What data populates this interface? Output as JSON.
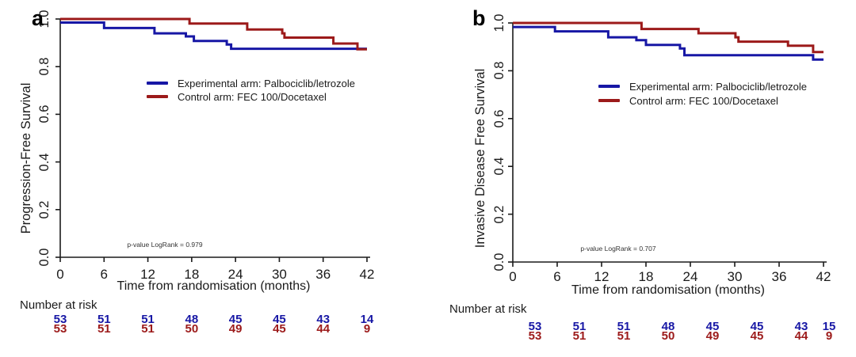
{
  "figure_type": "kaplan_meier_survival_figure",
  "chart_data": [
    {
      "type": "line",
      "panel_label": "a",
      "ylabel": "Progression-Free Survival",
      "xlabel": "Time from randomisation (months)",
      "xlim": [
        0,
        42
      ],
      "ylim": [
        0.0,
        1.0
      ],
      "x_ticks": [
        "0",
        "6",
        "12",
        "18",
        "24",
        "30",
        "36",
        "42"
      ],
      "y_ticks": [
        "0.0",
        "0.2",
        "0.4",
        "0.6",
        "0.8",
        "1.0"
      ],
      "grid": "off",
      "legend_position": "inside-center",
      "p_value": "p-value LogRank = 0.979",
      "series": [
        {
          "name": "Experimental arm: Palbociclib/letrozole",
          "color": "#1717a5",
          "step_points": [
            [
              0,
              0.985
            ],
            [
              6,
              0.985
            ],
            [
              6,
              0.962
            ],
            [
              12.9,
              0.962
            ],
            [
              12.9,
              0.94
            ],
            [
              17.2,
              0.94
            ],
            [
              17.2,
              0.927
            ],
            [
              18.3,
              0.927
            ],
            [
              18.3,
              0.908
            ],
            [
              22.8,
              0.908
            ],
            [
              22.8,
              0.893
            ],
            [
              23.4,
              0.893
            ],
            [
              23.4,
              0.875
            ],
            [
              42,
              0.875
            ]
          ]
        },
        {
          "name": "Control arm: FEC 100/Docetaxel",
          "color": "#9c1a1a",
          "step_points": [
            [
              0,
              1.0
            ],
            [
              17.7,
              1.0
            ],
            [
              17.7,
              0.981
            ],
            [
              25.6,
              0.981
            ],
            [
              25.6,
              0.956
            ],
            [
              30.4,
              0.956
            ],
            [
              30.4,
              0.94
            ],
            [
              30.7,
              0.94
            ],
            [
              30.7,
              0.922
            ],
            [
              37.4,
              0.922
            ],
            [
              37.4,
              0.897
            ],
            [
              40.7,
              0.897
            ],
            [
              40.7,
              0.873
            ],
            [
              42,
              0.873
            ]
          ]
        }
      ],
      "number_at_risk": {
        "label": "Number at risk",
        "rows": [
          {
            "name": "Experimental",
            "color": "#1717a5",
            "values": [
              "53",
              "51",
              "51",
              "48",
              "45",
              "45",
              "43",
              "14"
            ]
          },
          {
            "name": "Control",
            "color": "#9c1a1a",
            "values": [
              "53",
              "51",
              "51",
              "50",
              "49",
              "45",
              "44",
              "9"
            ]
          }
        ]
      }
    },
    {
      "type": "line",
      "panel_label": "b",
      "ylabel": "Invasive Disease Free Survival",
      "xlabel": "Time from randomisation (months)",
      "xlim": [
        0,
        42
      ],
      "ylim": [
        0.0,
        1.0
      ],
      "x_ticks": [
        "0",
        "6",
        "12",
        "18",
        "24",
        "30",
        "36",
        "42"
      ],
      "y_ticks": [
        "0.0",
        "0.2",
        "0.4",
        "0.6",
        "0.8",
        "1.0"
      ],
      "grid": "off",
      "legend_position": "inside-center",
      "p_value": "p-value LogRank = 0.707",
      "series": [
        {
          "name": "Experimental arm: Palbociclib/letrozole",
          "color": "#1717a5",
          "step_points": [
            [
              0,
              0.983
            ],
            [
              5.7,
              0.983
            ],
            [
              5.7,
              0.965
            ],
            [
              12.9,
              0.965
            ],
            [
              12.9,
              0.94
            ],
            [
              16.7,
              0.94
            ],
            [
              16.7,
              0.928
            ],
            [
              18,
              0.928
            ],
            [
              18,
              0.908
            ],
            [
              22.6,
              0.908
            ],
            [
              22.6,
              0.893
            ],
            [
              23.2,
              0.893
            ],
            [
              23.2,
              0.865
            ],
            [
              40.6,
              0.865
            ],
            [
              40.6,
              0.847
            ],
            [
              42,
              0.847
            ]
          ]
        },
        {
          "name": "Control arm: FEC 100/Docetaxel",
          "color": "#9c1a1a",
          "step_points": [
            [
              0,
              1.0
            ],
            [
              17.4,
              1.0
            ],
            [
              17.4,
              0.975
            ],
            [
              25.1,
              0.975
            ],
            [
              25.1,
              0.957
            ],
            [
              30.1,
              0.957
            ],
            [
              30.1,
              0.94
            ],
            [
              30.5,
              0.94
            ],
            [
              30.5,
              0.922
            ],
            [
              37.2,
              0.922
            ],
            [
              37.2,
              0.905
            ],
            [
              40.6,
              0.905
            ],
            [
              40.6,
              0.878
            ],
            [
              42,
              0.878
            ]
          ]
        }
      ],
      "number_at_risk": {
        "label": "Number at risk",
        "rows": [
          {
            "name": "Experimental",
            "color": "#1717a5",
            "values": [
              "53",
              "51",
              "51",
              "48",
              "45",
              "45",
              "43",
              "15"
            ]
          },
          {
            "name": "Control",
            "color": "#9c1a1a",
            "values": [
              "53",
              "51",
              "51",
              "50",
              "49",
              "45",
              "44",
              "9"
            ]
          }
        ]
      }
    }
  ]
}
